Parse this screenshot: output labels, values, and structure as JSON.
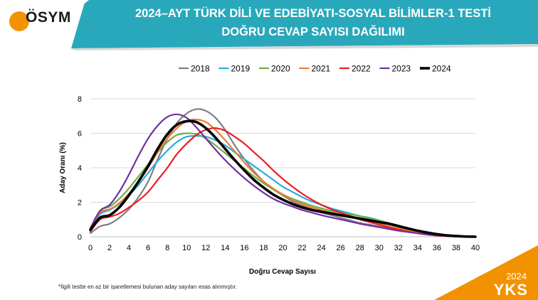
{
  "brand": {
    "logo_text": "ÖSYM",
    "year_badge": "2024",
    "exam_badge": "YKS",
    "colors": {
      "teal": "#29a8bb",
      "orange": "#f39200"
    }
  },
  "header": {
    "title_line1": "2024–AYT TÜRK DİLİ VE EDEBİYATI-SOSYAL BİLİMLER-1 TESTİ",
    "title_line2": "DOĞRU CEVAP SAYISI DAĞILIMI"
  },
  "footnote": "*İlgili testte en az bir işaretlemesi bulunan aday sayıları esas alınmıştır.",
  "chart_data": {
    "type": "line",
    "xlabel": "Doğru Cevap Sayısı",
    "ylabel": "Aday Oranı (%)",
    "xlim": [
      0,
      40
    ],
    "ylim": [
      0,
      8
    ],
    "xticks": [
      "0",
      "2",
      "4",
      "6",
      "8",
      "10",
      "12",
      "14",
      "16",
      "18",
      "20",
      "22",
      "24",
      "26",
      "28",
      "30",
      "32",
      "34",
      "36",
      "38",
      "40"
    ],
    "yticks": [
      "0",
      "2",
      "4",
      "6",
      "8"
    ],
    "legend_position": "top",
    "grid": "horizontal",
    "x": [
      0,
      1,
      2,
      3,
      4,
      5,
      6,
      7,
      8,
      9,
      10,
      11,
      12,
      13,
      14,
      15,
      16,
      17,
      18,
      19,
      20,
      21,
      22,
      23,
      24,
      25,
      26,
      27,
      28,
      29,
      30,
      31,
      32,
      33,
      34,
      35,
      36,
      37,
      38,
      39,
      40
    ],
    "series": [
      {
        "name": "2018",
        "color": "#808080",
        "width": 2.2,
        "values": [
          0.2,
          0.6,
          0.75,
          1.1,
          1.6,
          2.3,
          3.2,
          4.5,
          5.7,
          6.6,
          7.15,
          7.4,
          7.3,
          6.9,
          6.2,
          5.3,
          4.5,
          3.8,
          3.2,
          2.75,
          2.4,
          2.05,
          1.8,
          1.6,
          1.4,
          1.25,
          1.1,
          0.95,
          0.8,
          0.7,
          0.6,
          0.5,
          0.4,
          0.3,
          0.2,
          0.13,
          0.08,
          0.04,
          0.02,
          0.01,
          0.0
        ]
      },
      {
        "name": "2019",
        "color": "#29abe2",
        "width": 2.2,
        "values": [
          0.4,
          1.3,
          1.55,
          1.9,
          2.4,
          3.0,
          3.7,
          4.4,
          5.0,
          5.5,
          5.8,
          5.85,
          5.8,
          5.6,
          5.3,
          4.9,
          4.5,
          4.1,
          3.7,
          3.3,
          2.9,
          2.6,
          2.3,
          2.05,
          1.85,
          1.65,
          1.5,
          1.35,
          1.2,
          1.05,
          0.9,
          0.75,
          0.6,
          0.45,
          0.3,
          0.2,
          0.12,
          0.06,
          0.03,
          0.01,
          0.0
        ]
      },
      {
        "name": "2020",
        "color": "#70ad47",
        "width": 2.2,
        "values": [
          0.5,
          1.5,
          1.75,
          2.2,
          2.8,
          3.5,
          4.2,
          4.9,
          5.5,
          5.9,
          6.0,
          5.95,
          5.7,
          5.3,
          4.85,
          4.4,
          3.95,
          3.5,
          3.1,
          2.75,
          2.45,
          2.2,
          2.0,
          1.8,
          1.65,
          1.5,
          1.4,
          1.3,
          1.2,
          1.1,
          0.95,
          0.8,
          0.65,
          0.5,
          0.35,
          0.22,
          0.13,
          0.07,
          0.03,
          0.01,
          0.0
        ]
      },
      {
        "name": "2021",
        "color": "#ed7d31",
        "width": 2.2,
        "values": [
          0.5,
          1.4,
          1.6,
          1.95,
          2.5,
          3.2,
          4.0,
          4.9,
          5.7,
          6.3,
          6.7,
          6.8,
          6.65,
          6.2,
          5.6,
          4.95,
          4.3,
          3.7,
          3.2,
          2.8,
          2.45,
          2.15,
          1.9,
          1.7,
          1.55,
          1.4,
          1.3,
          1.2,
          1.05,
          0.9,
          0.75,
          0.6,
          0.5,
          0.38,
          0.27,
          0.17,
          0.1,
          0.05,
          0.02,
          0.01,
          0.0
        ]
      },
      {
        "name": "2022",
        "color": "#ee1c25",
        "width": 2.2,
        "values": [
          0.3,
          1.0,
          1.15,
          1.35,
          1.7,
          2.1,
          2.6,
          3.3,
          4.0,
          4.8,
          5.4,
          5.9,
          6.2,
          6.3,
          6.15,
          5.8,
          5.4,
          4.9,
          4.4,
          3.85,
          3.35,
          2.9,
          2.5,
          2.15,
          1.85,
          1.6,
          1.4,
          1.2,
          1.0,
          0.85,
          0.7,
          0.55,
          0.42,
          0.3,
          0.2,
          0.12,
          0.06,
          0.03,
          0.01,
          0.0,
          0.0
        ]
      },
      {
        "name": "2023",
        "color": "#7030a0",
        "width": 2.2,
        "values": [
          0.5,
          1.5,
          1.85,
          2.6,
          3.6,
          4.7,
          5.7,
          6.45,
          6.95,
          7.1,
          6.9,
          6.35,
          5.7,
          5.05,
          4.45,
          3.9,
          3.4,
          2.95,
          2.55,
          2.2,
          1.95,
          1.75,
          1.55,
          1.4,
          1.25,
          1.12,
          1.0,
          0.88,
          0.75,
          0.65,
          0.55,
          0.45,
          0.35,
          0.27,
          0.2,
          0.13,
          0.08,
          0.04,
          0.02,
          0.01,
          0.0
        ]
      },
      {
        "name": "2024",
        "color": "#000000",
        "width": 3.6,
        "values": [
          0.4,
          1.1,
          1.25,
          1.7,
          2.4,
          3.2,
          4.1,
          5.1,
          5.95,
          6.5,
          6.7,
          6.65,
          6.3,
          5.75,
          5.1,
          4.45,
          3.85,
          3.3,
          2.85,
          2.45,
          2.15,
          1.9,
          1.7,
          1.55,
          1.45,
          1.35,
          1.25,
          1.15,
          1.05,
          0.95,
          0.85,
          0.75,
          0.62,
          0.48,
          0.35,
          0.24,
          0.15,
          0.08,
          0.04,
          0.01,
          0.0
        ]
      }
    ]
  }
}
